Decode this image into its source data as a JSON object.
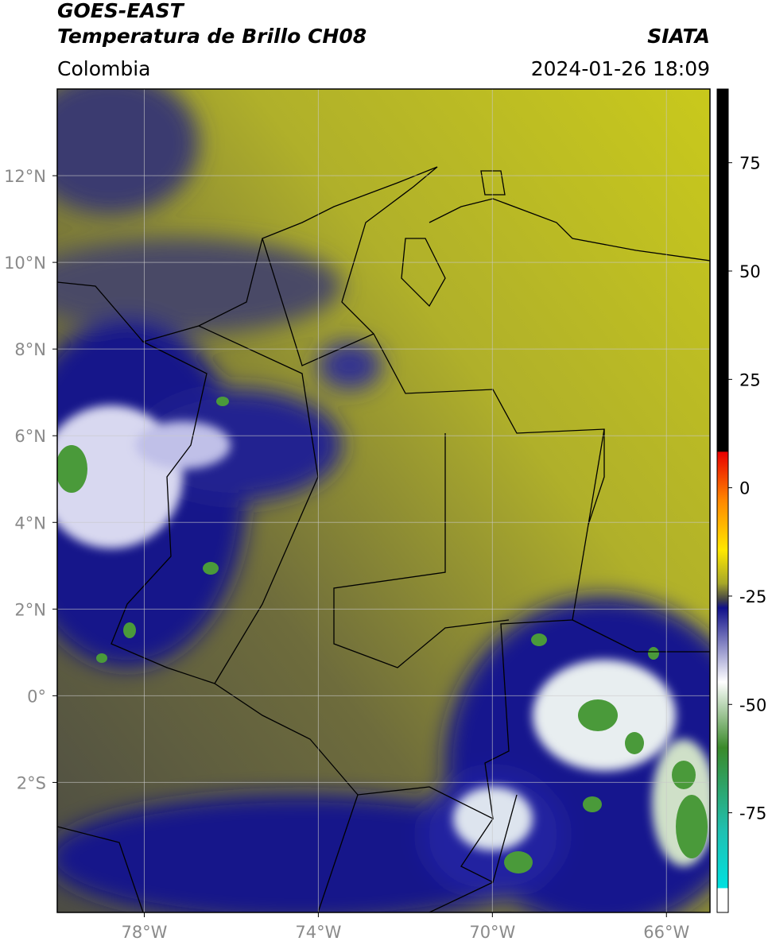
{
  "header": {
    "satellite": "GOES-EAST",
    "product": "Temperatura de Brillo CH08",
    "source": "SIATA",
    "region": "Colombia",
    "datetime": "2024-01-26 18:09"
  },
  "map": {
    "lon_lim": [
      -80,
      -65
    ],
    "lat_lim": [
      -5,
      14
    ],
    "lon_ticks": [
      {
        "value": -78,
        "label": "78°W"
      },
      {
        "value": -74,
        "label": "74°W"
      },
      {
        "value": -70,
        "label": "70°W"
      },
      {
        "value": -66,
        "label": "66°W"
      }
    ],
    "lat_ticks": [
      {
        "value": 12,
        "label": "12°N"
      },
      {
        "value": 10,
        "label": "10°N"
      },
      {
        "value": 8,
        "label": "8°N"
      },
      {
        "value": 6,
        "label": "6°N"
      },
      {
        "value": 4,
        "label": "4°N"
      },
      {
        "value": 2,
        "label": "2°N"
      },
      {
        "value": 0,
        "label": "0°"
      },
      {
        "value": -2,
        "label": "2°S"
      }
    ],
    "grid": true
  },
  "colorbar": {
    "lim": [
      -98,
      92
    ],
    "ticks": [
      75,
      50,
      25,
      0,
      -25,
      -50,
      -75
    ]
  }
}
